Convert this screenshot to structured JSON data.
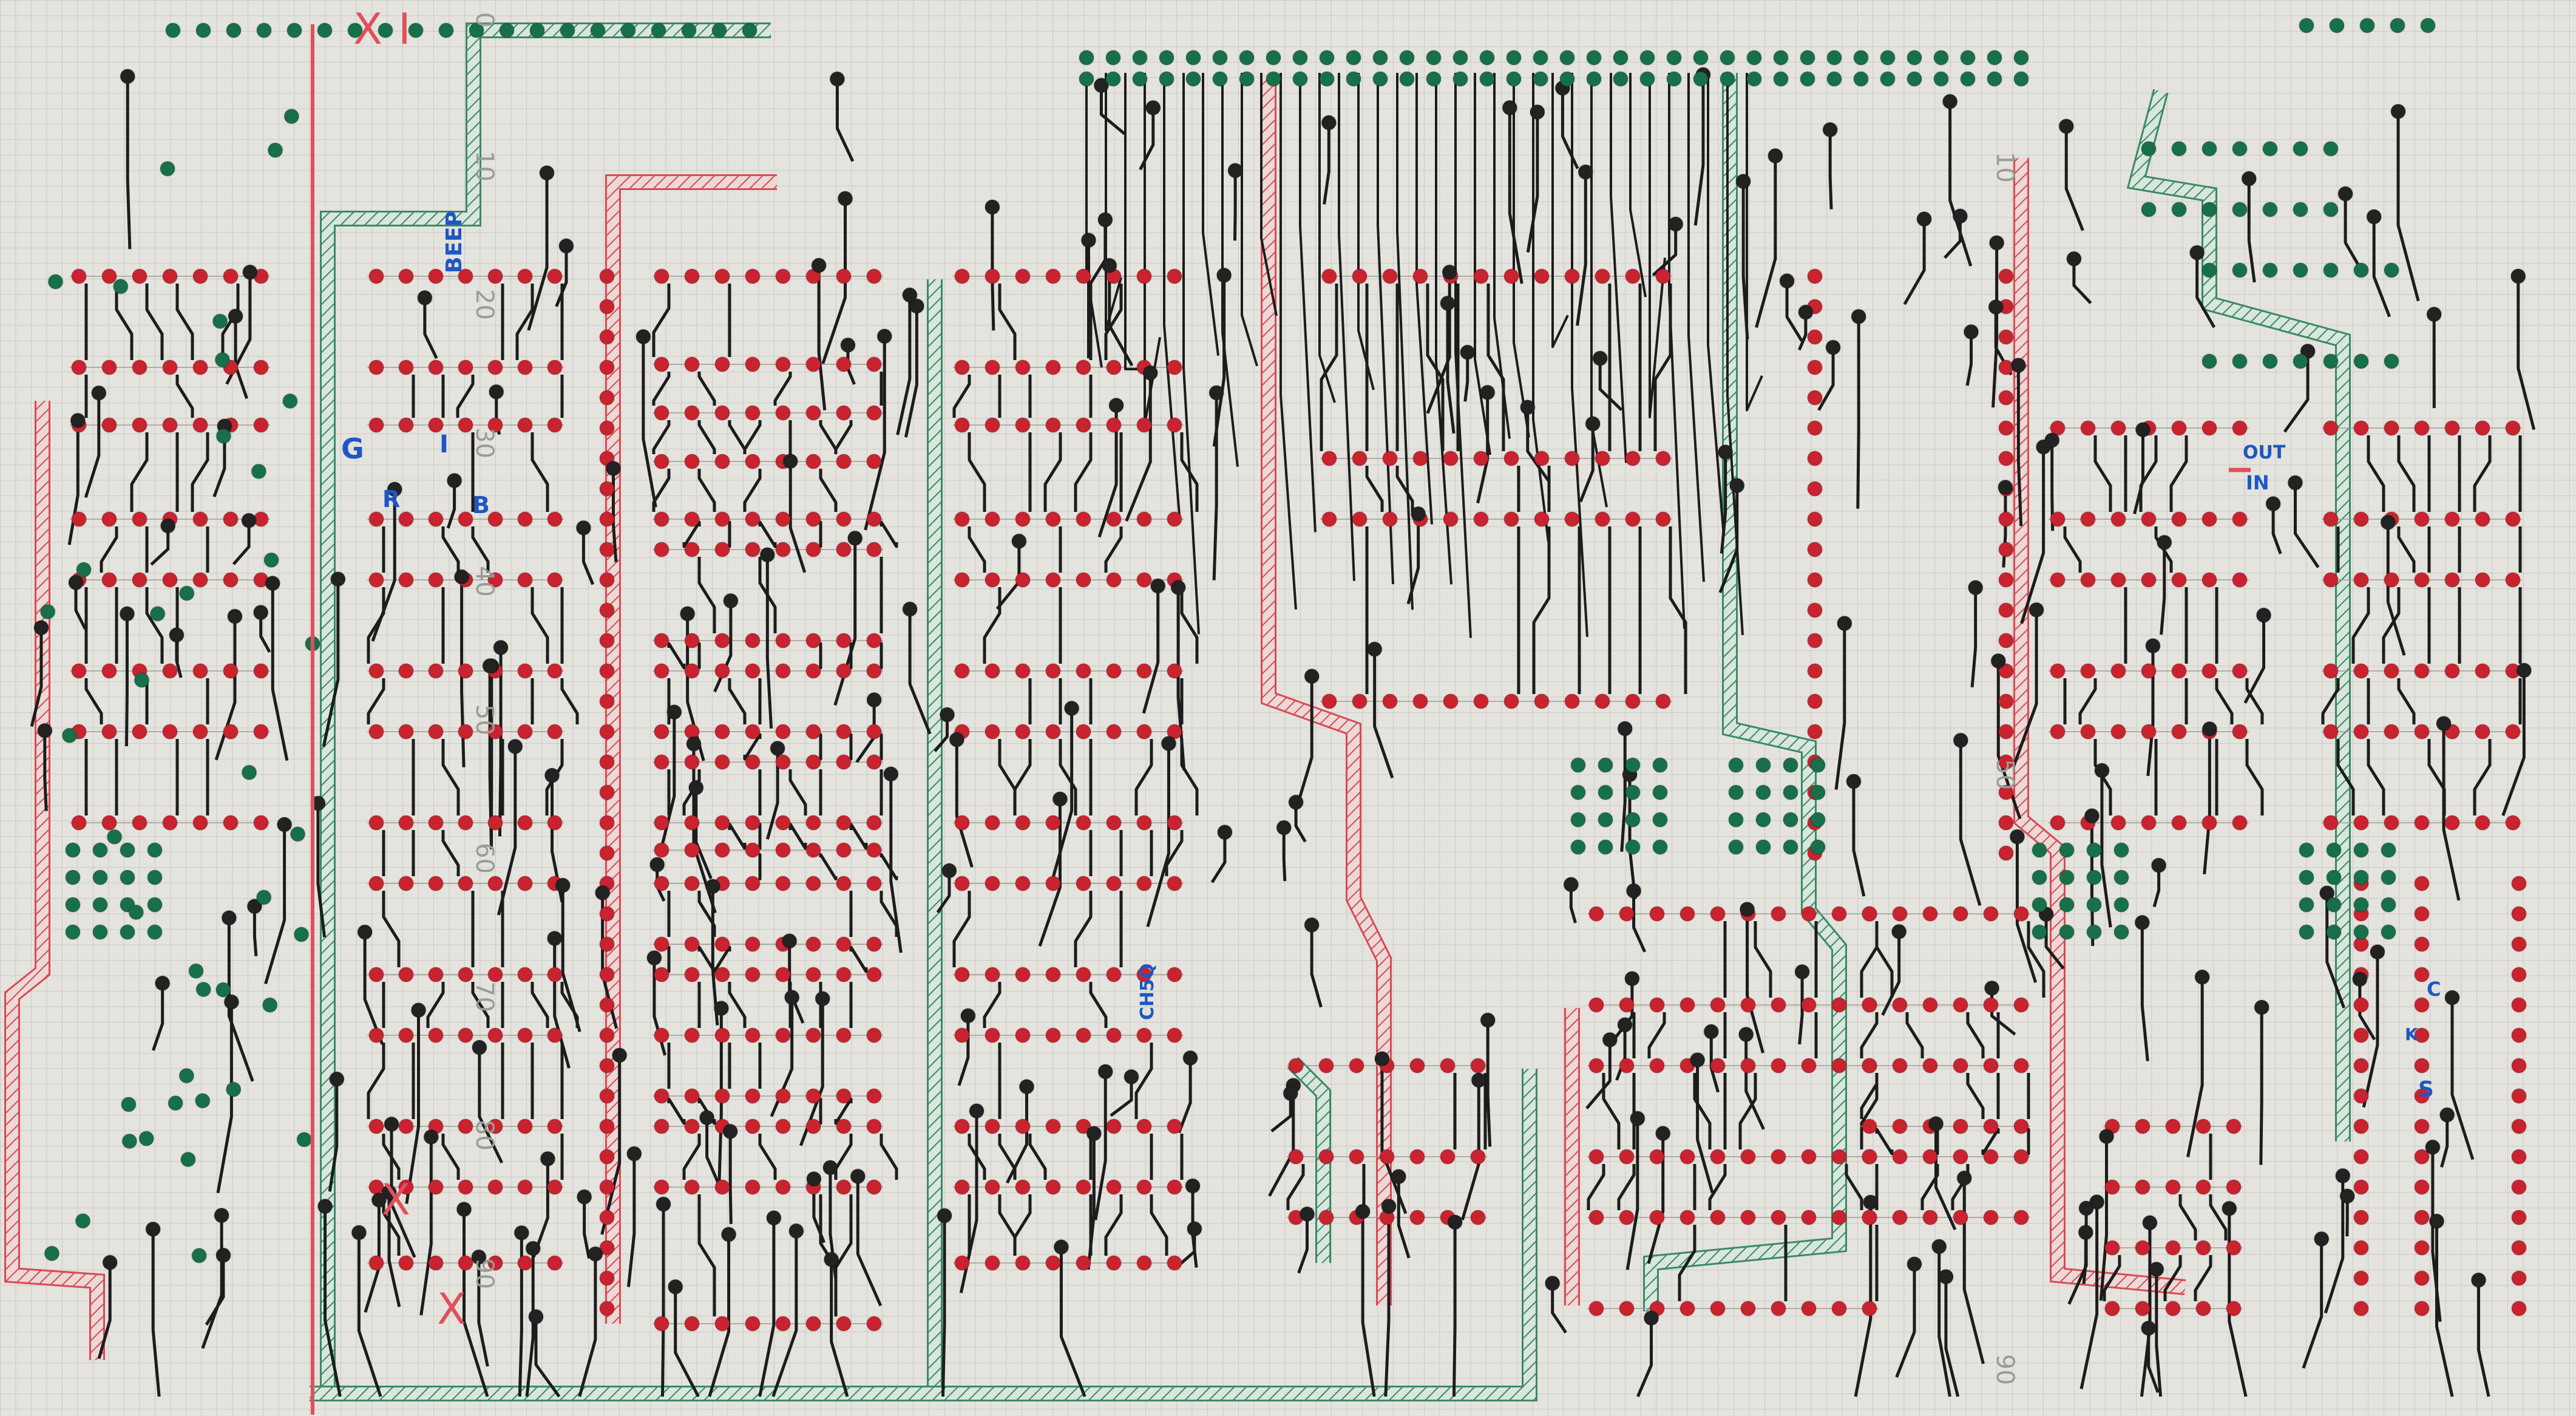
{
  "sheet": {
    "paper_color": "#e4e3dd",
    "grid_color": "#b9b8b2",
    "colors": {
      "pad_red": "#c8232f",
      "pad_green": "#17704a",
      "via_black": "#222222",
      "trace_black": "#1c1c1c",
      "rail_red": "#d94a55",
      "rail_green": "#3b8a63",
      "label_blue": "#1f56c4"
    },
    "marks": {
      "x_mark": "X",
      "cut_mark": "I"
    },
    "labels": {
      "beep": "BEEP",
      "g": "G",
      "i": "I",
      "r": "R",
      "b": "B",
      "ch5q": "CH5Q",
      "out": "OUT",
      "in": "IN",
      "c": "C",
      "k": "K",
      "s": "S"
    },
    "scale_numbers": [
      "0",
      "10",
      "20",
      "30",
      "40",
      "50",
      "60",
      "70",
      "80",
      "90"
    ],
    "right_scale_numbers": [
      "10",
      "50",
      "90"
    ]
  }
}
